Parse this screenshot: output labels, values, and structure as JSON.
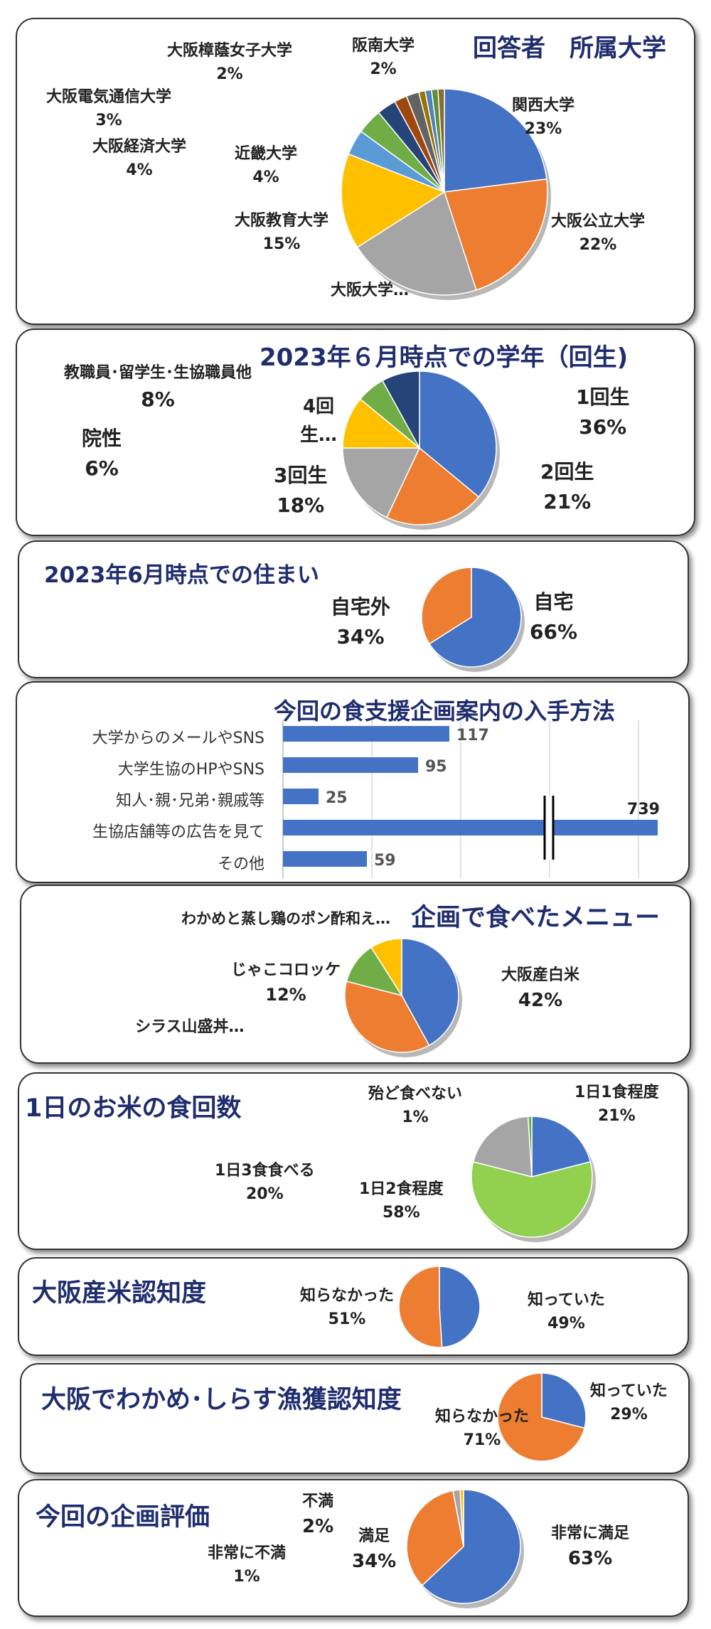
{
  "colors": {
    "blue": "#4472c4",
    "orange": "#ed7d31",
    "gray": "#a5a5a5",
    "yellow": "#ffc000",
    "lightblue": "#5b9bd5",
    "green": "#70ad47",
    "navy": "#264478",
    "brown": "#9e480e",
    "darkgray": "#636363",
    "olive": "#997300",
    "lime": "#92d050",
    "title": "#1f2d6e"
  },
  "chart_data": [
    {
      "type": "pie",
      "title": "回答者　所属大学",
      "slices": [
        {
          "name": "関西大学",
          "value": 23,
          "label": "23%",
          "color": "#4472c4"
        },
        {
          "name": "大阪公立大学",
          "value": 22,
          "label": "22%",
          "color": "#ed7d31"
        },
        {
          "name": "大阪大学…",
          "value": 21,
          "label": "",
          "color": "#a5a5a5"
        },
        {
          "name": "大阪教育大学",
          "value": 15,
          "label": "15%",
          "color": "#ffc000"
        },
        {
          "name": "近畿大学",
          "value": 4,
          "label": "4%",
          "color": "#5b9bd5"
        },
        {
          "name": "大阪経済大学",
          "value": 4,
          "label": "4%",
          "color": "#70ad47"
        },
        {
          "name": "大阪電気通信大学",
          "value": 3,
          "label": "3%",
          "color": "#264478"
        },
        {
          "name": "大阪樟蔭女子大学",
          "value": 2,
          "label": "2%",
          "color": "#9e480e"
        },
        {
          "name": "阪南大学",
          "value": 2,
          "label": "2%",
          "color": "#636363"
        },
        {
          "name": "",
          "value": 1,
          "label": "",
          "color": "#997300"
        },
        {
          "name": "",
          "value": 1,
          "label": "",
          "color": "#4f81bd"
        },
        {
          "name": "",
          "value": 1,
          "label": "",
          "color": "#5e8e3e"
        },
        {
          "name": "",
          "value": 1,
          "label": "",
          "color": "#8a6b2f"
        }
      ]
    },
    {
      "type": "pie",
      "title": "2023年６月時点での学年（回生)",
      "slices": [
        {
          "name": "1回生",
          "value": 36,
          "label": "36%",
          "color": "#4472c4"
        },
        {
          "name": "2回生",
          "value": 21,
          "label": "21%",
          "color": "#ed7d31"
        },
        {
          "name": "3回生",
          "value": 18,
          "label": "18%",
          "color": "#a5a5a5"
        },
        {
          "name": "4回生…",
          "value": 11,
          "label": "",
          "color": "#ffc000"
        },
        {
          "name": "院性",
          "value": 6,
          "label": "6%",
          "color": "#70ad47"
        },
        {
          "name": "教職員･留学生･生協職員他",
          "value": 8,
          "label": "8%",
          "color": "#264478"
        }
      ]
    },
    {
      "type": "pie",
      "title": "2023年6月時点での住まい",
      "slices": [
        {
          "name": "自宅",
          "value": 66,
          "label": "66%",
          "color": "#4472c4"
        },
        {
          "name": "自宅外",
          "value": 34,
          "label": "34%",
          "color": "#ed7d31"
        }
      ]
    },
    {
      "type": "bar",
      "orientation": "horizontal",
      "title": "今回の食支援企画案内の入手方法",
      "categories": [
        "大学からのメールやSNS",
        "大学生協のHPやSNS",
        "知人･親･兄弟･親戚等",
        "生協店舗等の広告を見て",
        "その他"
      ],
      "values": [
        117,
        95,
        25,
        739,
        59
      ],
      "xlim": [
        0,
        250
      ],
      "axis_break": true,
      "color": "#4472c4"
    },
    {
      "type": "pie",
      "title": "企画で食べたメニュー",
      "slices": [
        {
          "name": "大阪産白米",
          "value": 42,
          "label": "42%",
          "color": "#4472c4"
        },
        {
          "name": "シラス山盛丼…",
          "value": 37,
          "label": "",
          "color": "#ed7d31"
        },
        {
          "name": "じゃこコロッケ",
          "value": 12,
          "label": "12%",
          "color": "#70ad47"
        },
        {
          "name": "わかめと蒸し鶏のポン酢和え…",
          "value": 9,
          "label": "",
          "color": "#ffc000"
        }
      ]
    },
    {
      "type": "pie",
      "title": "1日のお米の食回数",
      "slices": [
        {
          "name": "1日1食程度",
          "value": 21,
          "label": "21%",
          "color": "#4472c4"
        },
        {
          "name": "1日2食程度",
          "value": 58,
          "label": "58%",
          "color": "#92d050"
        },
        {
          "name": "1日3食食べる",
          "value": 20,
          "label": "20%",
          "color": "#a5a5a5"
        },
        {
          "name": "殆ど食べない",
          "value": 1,
          "label": "1%",
          "color": "#70ad47"
        }
      ]
    },
    {
      "type": "pie",
      "title": "大阪産米認知度",
      "slices": [
        {
          "name": "知っていた",
          "value": 49,
          "label": "49%",
          "color": "#4472c4"
        },
        {
          "name": "知らなかった",
          "value": 51,
          "label": "51%",
          "color": "#ed7d31"
        }
      ]
    },
    {
      "type": "pie",
      "title": "大阪でわかめ･しらす漁獲認知度",
      "slices": [
        {
          "name": "知っていた",
          "value": 29,
          "label": "29%",
          "color": "#4472c4"
        },
        {
          "name": "知らなかった",
          "value": 71,
          "label": "71%",
          "color": "#ed7d31"
        }
      ]
    },
    {
      "type": "pie",
      "title": "今回の企画評価",
      "slices": [
        {
          "name": "非常に満足",
          "value": 63,
          "label": "63%",
          "color": "#4472c4"
        },
        {
          "name": "満足",
          "value": 34,
          "label": "34%",
          "color": "#ed7d31"
        },
        {
          "name": "不満",
          "value": 2,
          "label": "2%",
          "color": "#a5a5a5"
        },
        {
          "name": "非常に不満",
          "value": 1,
          "label": "1%",
          "color": "#ffc000"
        }
      ]
    }
  ]
}
